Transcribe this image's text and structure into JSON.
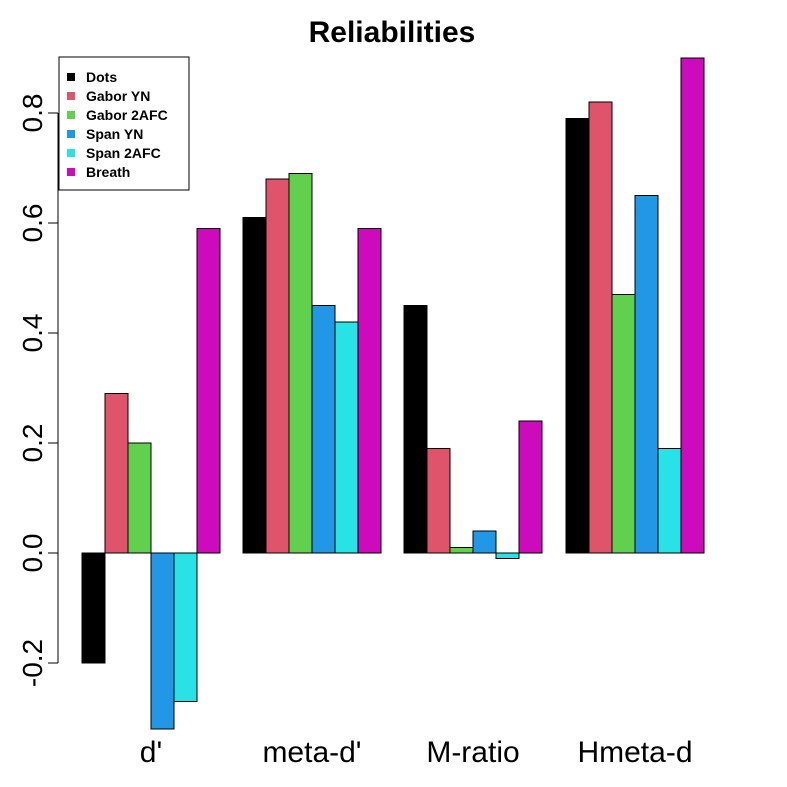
{
  "chart_data": {
    "type": "bar",
    "title": "Reliabilities",
    "xlabel": "",
    "ylabel": "",
    "categories": [
      "d'",
      "meta-d'",
      "M-ratio",
      "Hmeta-d"
    ],
    "ylim": [
      -0.32,
      0.9
    ],
    "yticks": [
      -0.2,
      0.0,
      0.2,
      0.4,
      0.6,
      0.8
    ],
    "ytick_labels": [
      "-0.2",
      "0.0",
      "0.2",
      "0.4",
      "0.6",
      "0.8"
    ],
    "grid": false,
    "legend_position": "top-left",
    "series": [
      {
        "name": "Dots",
        "color": "#000000",
        "values": [
          -0.2,
          0.61,
          0.45,
          0.79
        ]
      },
      {
        "name": "Gabor YN",
        "color": "#DF536B",
        "values": [
          0.29,
          0.68,
          0.19,
          0.82
        ]
      },
      {
        "name": "Gabor 2AFC",
        "color": "#61D04F",
        "values": [
          0.2,
          0.69,
          0.01,
          0.47
        ]
      },
      {
        "name": "Span YN",
        "color": "#2297E6",
        "values": [
          -0.32,
          0.45,
          0.04,
          0.65
        ]
      },
      {
        "name": "Span 2AFC",
        "color": "#28E2E5",
        "values": [
          -0.27,
          0.42,
          -0.01,
          0.19
        ]
      },
      {
        "name": "Breath",
        "color": "#CD0BBC",
        "values": [
          0.59,
          0.59,
          0.24,
          0.9
        ]
      }
    ]
  }
}
